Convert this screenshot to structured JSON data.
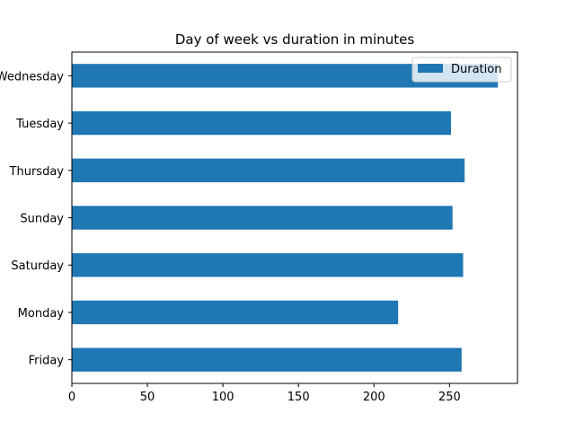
{
  "chart_data": {
    "type": "bar",
    "orientation": "horizontal",
    "title": "Day of week vs duration in minutes",
    "xlabel": "",
    "ylabel": "",
    "categories": [
      "Friday",
      "Monday",
      "Saturday",
      "Sunday",
      "Thursday",
      "Tuesday",
      "Wednesday"
    ],
    "series": [
      {
        "name": "Duration",
        "values": [
          258,
          216,
          259,
          252,
          260,
          251,
          282
        ],
        "color": "#1f77b4"
      }
    ],
    "xlim": [
      0,
      295
    ],
    "xticks": [
      0,
      50,
      100,
      150,
      200,
      250
    ],
    "grid": false,
    "legend": {
      "position": "top-right"
    }
  }
}
